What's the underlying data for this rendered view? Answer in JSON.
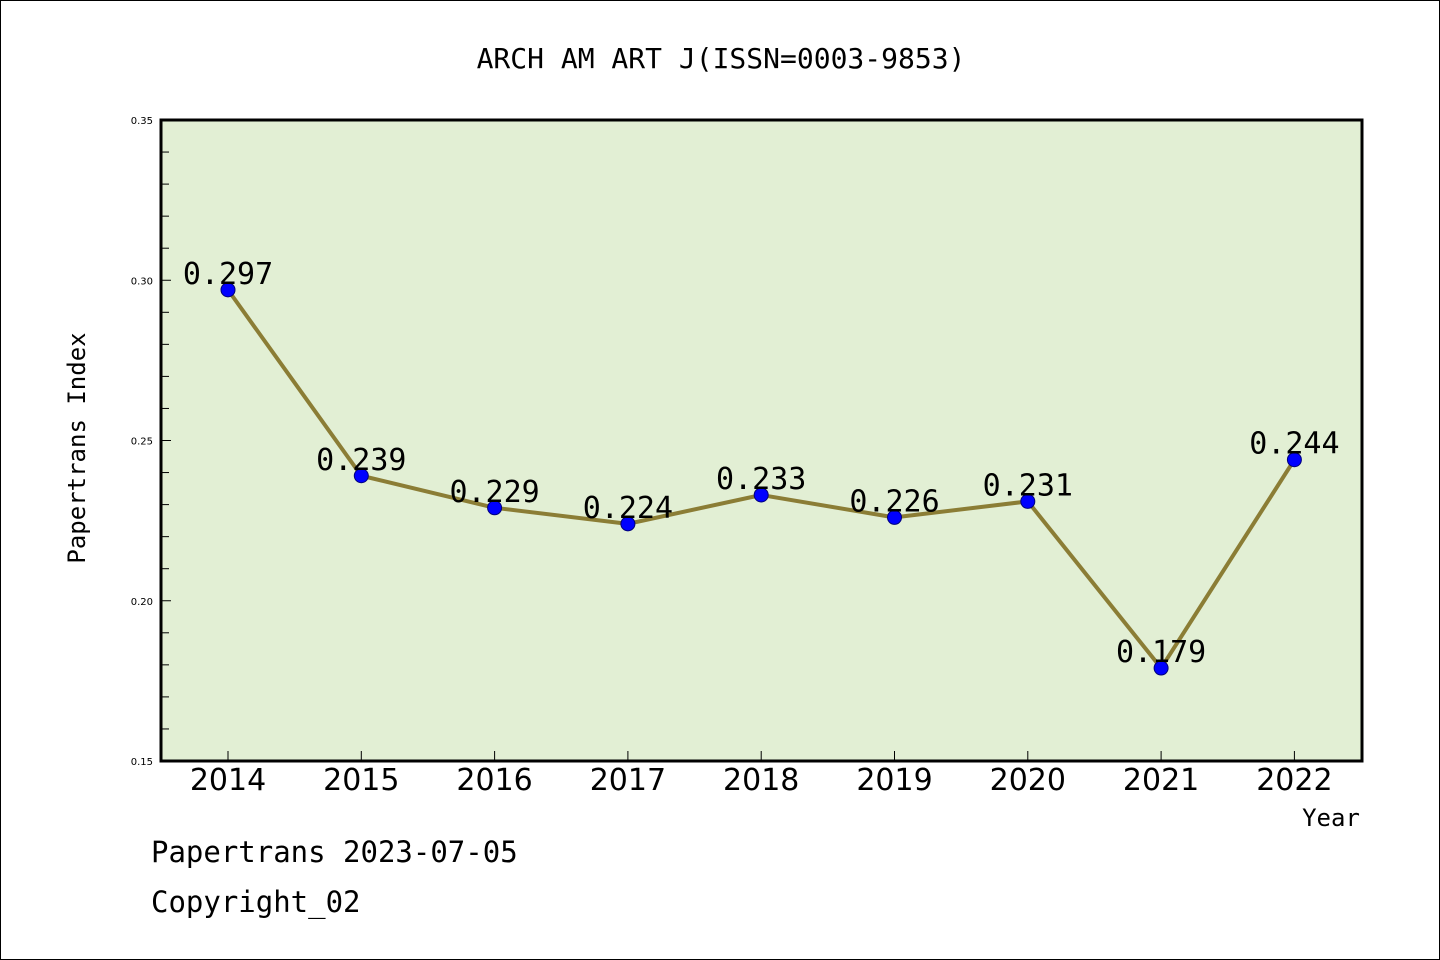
{
  "chart_data": {
    "type": "line",
    "title": "ARCH AM ART J(ISSN=0003-9853)",
    "xlabel": "Year",
    "ylabel": "Papertrans Index",
    "categories": [
      "2014",
      "2015",
      "2016",
      "2017",
      "2018",
      "2019",
      "2020",
      "2021",
      "2022"
    ],
    "values": [
      0.297,
      0.239,
      0.229,
      0.224,
      0.233,
      0.226,
      0.231,
      0.179,
      0.244
    ],
    "data_labels": [
      "0.297",
      "0.239",
      "0.229",
      "0.224",
      "0.233",
      "0.226",
      "0.231",
      "0.179",
      "0.244"
    ],
    "ylim": [
      0.15,
      0.35
    ],
    "yticks": [
      0.15,
      0.2,
      0.25,
      0.3,
      0.35
    ],
    "ytick_labels": [
      "0.15",
      "0.20",
      "0.25",
      "0.30",
      "0.35"
    ],
    "grid": false,
    "colors": {
      "plot_background": "#e2efd4",
      "line": "#8b7d35",
      "marker": "#0000ff"
    }
  },
  "footer": {
    "line1": "Papertrans 2023-07-05",
    "line2": "Copyright_02"
  }
}
